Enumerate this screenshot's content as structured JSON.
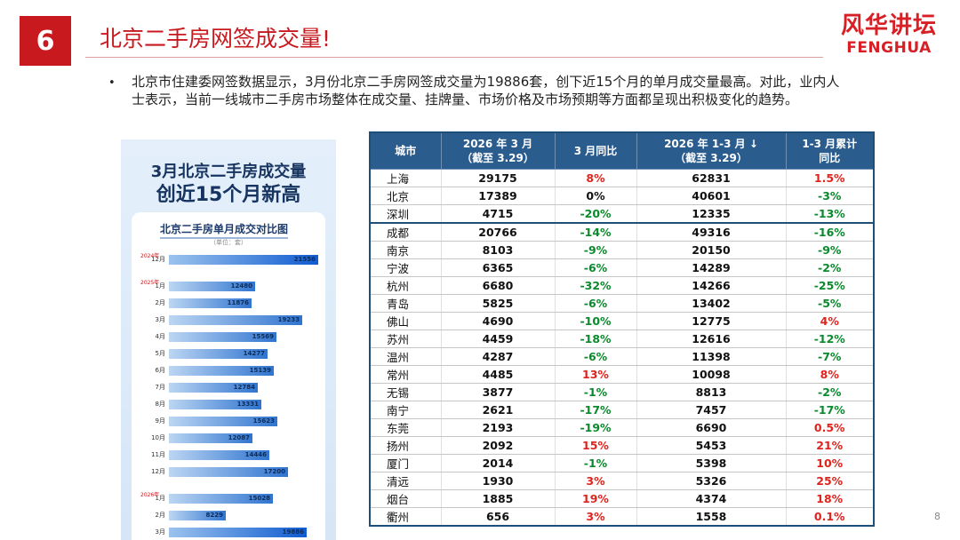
{
  "slide": {
    "number": "6",
    "title": "北京二手房网签成交量!",
    "page": "8",
    "paragraph": "北京市住建委网签数据显示，3月份北京二手房网签成交量为19886套，创下近15个月的单月成交量最高。对此，业内人士表示，当前一线城市二手房市场整体在成交量、挂牌量、市场价格及市场预期等方面都呈现出积极变化的趋势。"
  },
  "logo": {
    "cn": "风华讲坛",
    "en": "FENGHUA"
  },
  "colors": {
    "accent": "#c8191f",
    "table_header": "#2b5c8e",
    "positive": "#e0231d",
    "negative": "#0a8a2c"
  },
  "infographic": {
    "headline1": "3月北京二手房成交量",
    "headline2": "创近15个月新高",
    "card_title": "北京二手房单月成交对比图",
    "unit": "（单位：套）",
    "year_labels": [
      "2024年",
      "2025年",
      "2026年"
    ],
    "chart_data": {
      "type": "bar",
      "title": "北京二手房单月成交对比图",
      "unit": "套",
      "categories": [
        "12月",
        "1月",
        "2月",
        "3月",
        "4月",
        "5月",
        "6月",
        "7月",
        "8月",
        "9月",
        "10月",
        "11月",
        "12月",
        "1月",
        "2月",
        "3月"
      ],
      "values": [
        21556,
        12480,
        11876,
        19233,
        15569,
        14277,
        15139,
        12784,
        13331,
        15623,
        12087,
        14446,
        17200,
        15028,
        8229,
        19886
      ]
    }
  },
  "table": {
    "headers": [
      "城市",
      "2026 年 3 月\n（截至 3.29）",
      "3 月同比",
      "2026 年 1-3 月 ↓\n（截至 3.29）",
      "1-3 月累计\n同比"
    ],
    "rows": [
      {
        "city": "上海",
        "mar": "29175",
        "mar_yoy": "8%",
        "q1": "62831",
        "q1_yoy": "1.5%"
      },
      {
        "city": "北京",
        "mar": "17389",
        "mar_yoy": "0%",
        "q1": "40601",
        "q1_yoy": "-3%"
      },
      {
        "city": "深圳",
        "mar": "4715",
        "mar_yoy": "-20%",
        "q1": "12335",
        "q1_yoy": "-13%"
      },
      {
        "city": "成都",
        "mar": "20766",
        "mar_yoy": "-14%",
        "q1": "49316",
        "q1_yoy": "-16%"
      },
      {
        "city": "南京",
        "mar": "8103",
        "mar_yoy": "-9%",
        "q1": "20150",
        "q1_yoy": "-9%"
      },
      {
        "city": "宁波",
        "mar": "6365",
        "mar_yoy": "-6%",
        "q1": "14289",
        "q1_yoy": "-2%"
      },
      {
        "city": "杭州",
        "mar": "6680",
        "mar_yoy": "-32%",
        "q1": "14266",
        "q1_yoy": "-25%"
      },
      {
        "city": "青岛",
        "mar": "5825",
        "mar_yoy": "-6%",
        "q1": "13402",
        "q1_yoy": "-5%"
      },
      {
        "city": "佛山",
        "mar": "4690",
        "mar_yoy": "-10%",
        "q1": "12775",
        "q1_yoy": "4%"
      },
      {
        "city": "苏州",
        "mar": "4459",
        "mar_yoy": "-18%",
        "q1": "12616",
        "q1_yoy": "-12%"
      },
      {
        "city": "温州",
        "mar": "4287",
        "mar_yoy": "-6%",
        "q1": "11398",
        "q1_yoy": "-7%"
      },
      {
        "city": "常州",
        "mar": "4485",
        "mar_yoy": "13%",
        "q1": "10098",
        "q1_yoy": "8%"
      },
      {
        "city": "无锡",
        "mar": "3877",
        "mar_yoy": "-1%",
        "q1": "8813",
        "q1_yoy": "-2%"
      },
      {
        "city": "南宁",
        "mar": "2621",
        "mar_yoy": "-17%",
        "q1": "7457",
        "q1_yoy": "-17%"
      },
      {
        "city": "东莞",
        "mar": "2193",
        "mar_yoy": "-19%",
        "q1": "6690",
        "q1_yoy": "0.5%"
      },
      {
        "city": "扬州",
        "mar": "2092",
        "mar_yoy": "15%",
        "q1": "5453",
        "q1_yoy": "21%"
      },
      {
        "city": "厦门",
        "mar": "2014",
        "mar_yoy": "-1%",
        "q1": "5398",
        "q1_yoy": "10%"
      },
      {
        "city": "清远",
        "mar": "1930",
        "mar_yoy": "3%",
        "q1": "5326",
        "q1_yoy": "25%"
      },
      {
        "city": "烟台",
        "mar": "1885",
        "mar_yoy": "19%",
        "q1": "4374",
        "q1_yoy": "18%"
      },
      {
        "city": "衢州",
        "mar": "656",
        "mar_yoy": "3%",
        "q1": "1558",
        "q1_yoy": "0.1%"
      }
    ]
  }
}
